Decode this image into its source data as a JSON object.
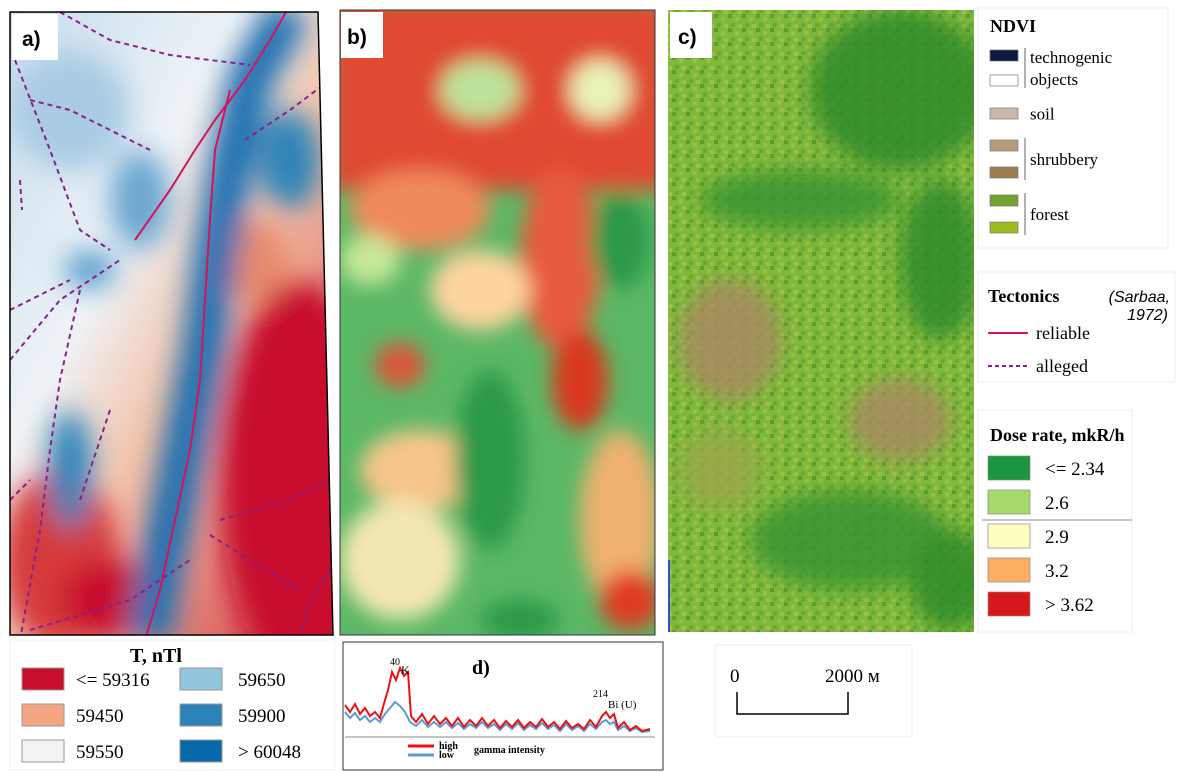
{
  "panel_labels": [
    "a)",
    "b)",
    "c)",
    "d)"
  ],
  "magnetic_legend": {
    "title": "T, nTl",
    "items": [
      {
        "label": "<= 59316",
        "color": "#c8102e"
      },
      {
        "label": "59450",
        "color": "#f4a582"
      },
      {
        "label": "59550",
        "color": "#f2f2f2"
      },
      {
        "label": "59650",
        "color": "#92c5de"
      },
      {
        "label": "59900",
        "color": "#2b83ba"
      },
      {
        "label": "> 60048",
        "color": "#0868ac"
      }
    ]
  },
  "ndvi_legend": {
    "title": "NDVI",
    "groups": [
      {
        "label_lines": [
          "technogenic",
          "objects"
        ],
        "colors": [
          "#0b1a3e",
          "#ffffff"
        ]
      },
      {
        "label_lines": [
          "soil"
        ],
        "colors": [
          "#c9b9ad"
        ]
      },
      {
        "label_lines": [
          "shrubbery"
        ],
        "colors": [
          "#b99b7a",
          "#a07d52"
        ]
      },
      {
        "label_lines": [
          "forest"
        ],
        "colors": [
          "#74a22e",
          "#9cbb1e"
        ]
      }
    ]
  },
  "tectonics_legend": {
    "title": "Tectonics",
    "source_lines": [
      "(Sarbaa,",
      "1972)"
    ],
    "items": [
      {
        "label": "reliable",
        "color": "#d4145a",
        "style": "solid"
      },
      {
        "label": "alleged",
        "color": "#8b1f8b",
        "style": "dashed"
      }
    ]
  },
  "dose_legend": {
    "title": "Dose rate, mkR/h",
    "items": [
      {
        "label": "<= 2.34",
        "color": "#1a9641"
      },
      {
        "label": "2.6",
        "color": "#a6d96a"
      },
      {
        "label": "2.9",
        "color": "#ffffbf"
      },
      {
        "label": "3.2",
        "color": "#fdae61"
      },
      {
        "label": "> 3.62",
        "color": "#d7191c"
      }
    ]
  },
  "scale_bar": {
    "start": "0",
    "end": "2000 м"
  },
  "spectrum": {
    "peak_1": {
      "mass": "40",
      "element": "K"
    },
    "peak_2": {
      "mass": "214",
      "element": "Bi (U)"
    },
    "series": [
      {
        "label": "high",
        "color": "#ee1111"
      },
      {
        "label": "low",
        "color": "#5b9bd5"
      }
    ],
    "caption": "gamma intensity"
  }
}
